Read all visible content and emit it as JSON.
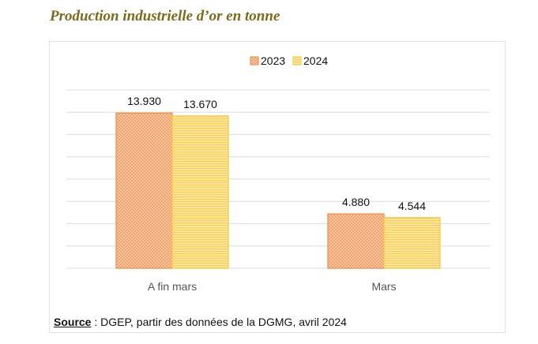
{
  "title": "Production industrielle d’or en tonne",
  "chart_data": {
    "type": "bar",
    "categories": [
      "A fin mars",
      "Mars"
    ],
    "series": [
      {
        "name": "2023",
        "values": [
          13.93,
          4.88
        ],
        "labels": [
          "13.930",
          "4.880"
        ],
        "color": "#f4a46a",
        "pattern": "crosshatch"
      },
      {
        "name": "2024",
        "values": [
          13.67,
          4.544
        ],
        "labels": [
          "13.670",
          "4.544"
        ],
        "color": "#fcd66a",
        "pattern": "horizontal-stripes"
      }
    ],
    "ylim": [
      0,
      16
    ],
    "grid": true,
    "legend": "top-center",
    "xlabel": "",
    "ylabel": ""
  },
  "source": {
    "label": "Source",
    "text": " : DGEP,  partir des données de la DGMG, avril 2024"
  }
}
